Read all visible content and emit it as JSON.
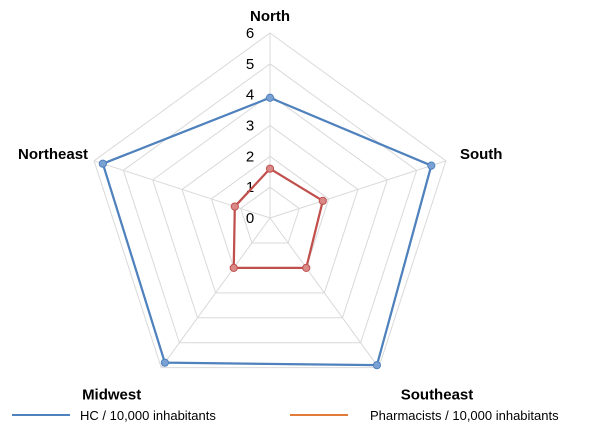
{
  "chart_data": {
    "type": "radar",
    "title": "",
    "categories": [
      "North",
      "South",
      "Southeast",
      "Midwest",
      "Northeast"
    ],
    "ticks": [
      0,
      1,
      2,
      3,
      4,
      5,
      6
    ],
    "rlim": [
      0,
      6
    ],
    "grid": true,
    "legend_position": "bottom",
    "series": [
      {
        "name": "HC / 10,000 inhabitants",
        "color": "#4f81bd",
        "marker_color": "#7aa1d4",
        "values": [
          3.9,
          5.5,
          5.9,
          5.8,
          5.7
        ]
      },
      {
        "name": "Pharmacists / 10,000 inhabitants",
        "color": "#c0504d",
        "marker_color": "#d98986",
        "values": [
          1.6,
          1.8,
          2.0,
          2.0,
          1.2
        ]
      }
    ]
  },
  "legend": {
    "hc_label": "HC / 10,000 inhabitants",
    "pharm_label": "Pharmacists / 10,000 inhabitants",
    "hc_line_color": "#4f81bd",
    "pharm_line_color": "#e07b39"
  }
}
